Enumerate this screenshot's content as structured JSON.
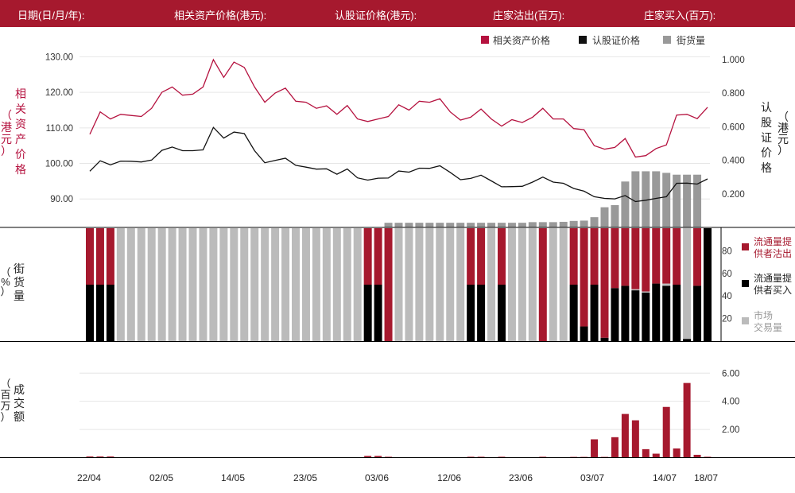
{
  "header": {
    "labels": [
      "日期(日/月/年):",
      "相关资产价格(港元):",
      "认股证价格(港元):",
      "庄家沽出(百万):",
      "庄家买入(百万):"
    ]
  },
  "colors": {
    "brand": "#a6192e",
    "underlying_line": "#b5123f",
    "warrant_line": "#111111",
    "outstanding_bar": "#999999",
    "mm_sell": "#a6192e",
    "mm_buy": "#000000",
    "market": "#bbbbbb"
  },
  "icons": {
    "legend_marker": "square"
  },
  "dates": {
    "ticks": [
      "22/04",
      "02/05",
      "14/05",
      "23/05",
      "03/06",
      "12/06",
      "23/06",
      "03/07",
      "14/07",
      "18/07"
    ]
  },
  "chart_data": [
    {
      "type": "line",
      "title": "",
      "legend": [
        "相关资产价格",
        "认股证价格",
        "街货量"
      ],
      "legend_position": "top-right",
      "left_axis_label": [
        "相",
        "关",
        "资",
        "产",
        "价",
        "格"
      ],
      "left_axis_unit": [
        "（",
        "港",
        "元",
        "）"
      ],
      "right_axis_label": [
        "认",
        "股",
        "证",
        "价",
        "格"
      ],
      "right_axis_unit": [
        "（",
        "港",
        "元",
        "）"
      ],
      "left_ticks": [
        "90.00",
        "100.00",
        "110.00",
        "120.00",
        "130.00"
      ],
      "right_ticks": [
        "0.200",
        "0.400",
        "0.600",
        "0.800",
        "1.000"
      ],
      "left_range": [
        82,
        133
      ],
      "right_range": [
        0.0,
        1.08
      ],
      "underlying_price": [
        108.2,
        114.5,
        112.5,
        113.8,
        113.5,
        113.2,
        115.5,
        120.0,
        121.5,
        119.2,
        119.5,
        121.5,
        129.2,
        124.2,
        128.5,
        127.0,
        121.5,
        117.2,
        119.8,
        121.2,
        117.5,
        117.2,
        115.5,
        116.2,
        113.8,
        116.3,
        112.5,
        111.8,
        112.5,
        113.2,
        116.5,
        115.0,
        117.5,
        117.2,
        118.2,
        114.5,
        112.2,
        113.0,
        115.3,
        112.5,
        110.5,
        112.3,
        111.5,
        113.0,
        115.5,
        112.5,
        112.5,
        109.8,
        109.5,
        105.0,
        104.0,
        104.5,
        107.0,
        101.8,
        102.2,
        104.2,
        105.2,
        113.6,
        113.8,
        112.6,
        115.8
      ],
      "warrant_price": [
        0.335,
        0.397,
        0.373,
        0.395,
        0.394,
        0.39,
        0.401,
        0.459,
        0.479,
        0.457,
        0.457,
        0.462,
        0.596,
        0.532,
        0.568,
        0.559,
        0.457,
        0.385,
        0.399,
        0.412,
        0.37,
        0.359,
        0.347,
        0.349,
        0.317,
        0.348,
        0.295,
        0.282,
        0.293,
        0.294,
        0.336,
        0.329,
        0.353,
        0.352,
        0.367,
        0.328,
        0.284,
        0.292,
        0.311,
        0.277,
        0.242,
        0.243,
        0.245,
        0.27,
        0.3,
        0.27,
        0.263,
        0.232,
        0.216,
        0.183,
        0.173,
        0.17,
        0.19,
        0.154,
        0.162,
        0.173,
        0.183,
        0.263,
        0.264,
        0.258,
        0.289
      ],
      "outstanding": [
        0,
        0,
        0,
        0,
        0,
        0,
        0,
        0,
        0,
        0,
        0,
        0,
        0,
        0,
        0,
        0,
        0,
        0,
        0,
        0,
        0,
        0,
        0,
        0,
        0,
        0,
        0,
        0,
        0,
        1.5,
        1.5,
        1.5,
        1.5,
        1.5,
        1.5,
        1.5,
        1.5,
        1.5,
        1.5,
        1.5,
        1.5,
        1.5,
        1.5,
        1.7,
        1.7,
        1.7,
        1.8,
        2.1,
        2.2,
        3.3,
        6.5,
        7.2,
        14.8,
        18.1,
        18.1,
        18.1,
        17.6,
        17.0,
        17.0,
        17.0,
        0
      ]
    },
    {
      "type": "bar",
      "stacked": true,
      "axis_label": [
        "街",
        "货",
        "量"
      ],
      "axis_unit": [
        "（",
        "%",
        "）"
      ],
      "ticks": [
        "20",
        "40",
        "60",
        "80"
      ],
      "range": [
        0,
        100
      ],
      "legend": [
        "流通量提供者沽出",
        "流通量提供者买入",
        "市场交易量"
      ],
      "legend_lines": [
        [
          "流通量提",
          "供者沽出"
        ],
        [
          "流通量提",
          "供者买入"
        ],
        [
          "市场",
          "交易量"
        ]
      ],
      "mm_sell": [
        50,
        50,
        50,
        0,
        0,
        0,
        0,
        0,
        0,
        0,
        0,
        0,
        0,
        0,
        0,
        0,
        0,
        0,
        0,
        0,
        0,
        0,
        0,
        0,
        0,
        0,
        0,
        50,
        50,
        100,
        0,
        0,
        0,
        0,
        0,
        0,
        0,
        50,
        50,
        0,
        50,
        0,
        0,
        0,
        100,
        0,
        0,
        50,
        87,
        50,
        97,
        53,
        51,
        54,
        56,
        49,
        49,
        50,
        0,
        51,
        0
      ],
      "mm_buy": [
        50,
        50,
        50,
        0,
        0,
        0,
        0,
        0,
        0,
        0,
        0,
        0,
        0,
        0,
        0,
        0,
        0,
        0,
        0,
        0,
        0,
        0,
        0,
        0,
        0,
        0,
        0,
        50,
        50,
        0,
        0,
        0,
        0,
        0,
        0,
        0,
        0,
        50,
        50,
        0,
        50,
        0,
        0,
        0,
        0,
        0,
        0,
        50,
        13,
        50,
        3,
        47,
        49,
        45,
        43,
        51,
        49,
        50,
        2,
        49,
        100
      ],
      "market": [
        0,
        0,
        0,
        100,
        100,
        100,
        100,
        100,
        100,
        100,
        100,
        100,
        100,
        100,
        100,
        100,
        100,
        100,
        100,
        100,
        100,
        100,
        100,
        100,
        100,
        100,
        100,
        0,
        0,
        0,
        100,
        100,
        100,
        100,
        100,
        100,
        100,
        0,
        0,
        100,
        0,
        100,
        100,
        100,
        0,
        100,
        100,
        0,
        0,
        0,
        0,
        0,
        0,
        1,
        1,
        0,
        2,
        0,
        98,
        0,
        0
      ]
    },
    {
      "type": "bar",
      "axis_label": [
        "成",
        "交",
        "额"
      ],
      "axis_unit": [
        "（",
        "百",
        "万",
        "）"
      ],
      "ticks": [
        "2.00",
        "4.00",
        "6.00"
      ],
      "range": [
        0,
        7.2
      ],
      "turnover": [
        0.08,
        0.08,
        0.08,
        0,
        0,
        0,
        0,
        0,
        0,
        0,
        0,
        0,
        0,
        0,
        0,
        0,
        0,
        0,
        0,
        0,
        0,
        0,
        0,
        0,
        0,
        0,
        0,
        0.12,
        0.12,
        0.06,
        0,
        0,
        0,
        0,
        0,
        0,
        0,
        0.06,
        0.06,
        0,
        0.06,
        0,
        0,
        0,
        0.06,
        0,
        0,
        0.05,
        0.05,
        1.3,
        0.05,
        1.45,
        3.1,
        2.65,
        0.6,
        0.28,
        3.6,
        0.65,
        5.3,
        0.2,
        0.06
      ]
    }
  ]
}
